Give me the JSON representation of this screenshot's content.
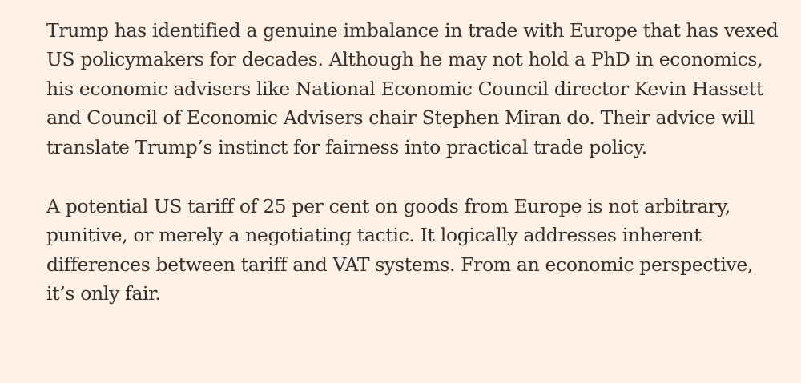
{
  "article": {
    "paragraphs": [
      {
        "lines": [
          "Trump has identified a genuine imbalance in trade with Europe that has vexed",
          "US policymakers for decades. Although he may not hold a PhD in economics,",
          "his economic advisers like National Economic Council director Kevin Hassett",
          "and Council of Economic Advisers chair Stephen Miran do. Their advice will",
          "translate Trump’s instinct for fairness into practical trade policy."
        ]
      },
      {
        "lines": [
          "A potential US tariff of 25 per cent on goods from Europe is not arbitrary,",
          "punitive, or merely a negotiating tactic. It logically addresses inherent",
          "differences between tariff and VAT systems. From an economic perspective,",
          "it’s only fair."
        ]
      }
    ]
  },
  "colors": {
    "background": "#fff1e5",
    "text": "#33302e"
  }
}
